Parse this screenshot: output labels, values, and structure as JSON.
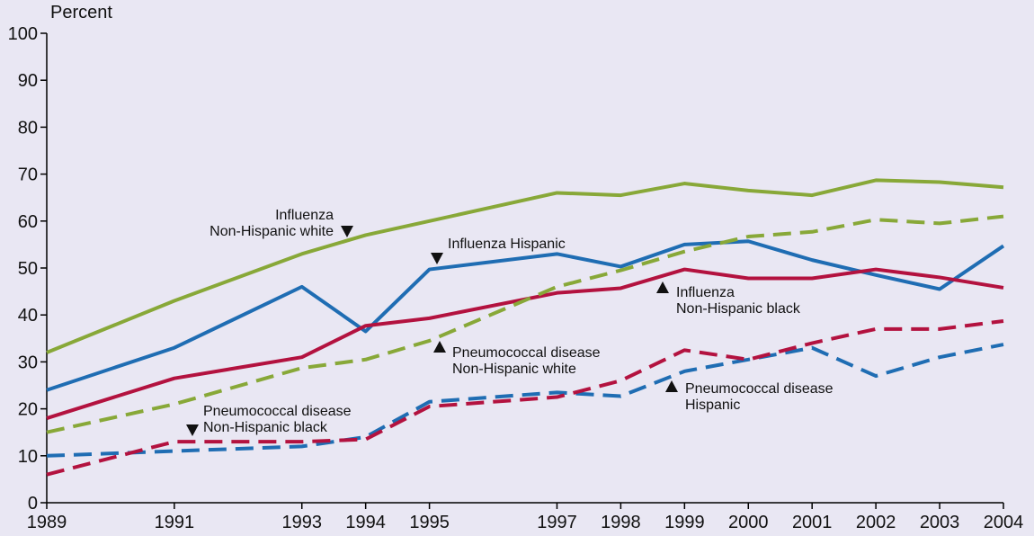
{
  "chart_data": {
    "type": "line",
    "y_label": "Percent",
    "x": [
      1989,
      1991,
      1993,
      1994,
      1995,
      1997,
      1998,
      1999,
      2000,
      2001,
      2002,
      2003,
      2004
    ],
    "xlim": [
      1989,
      2004
    ],
    "xticks": [
      1989,
      1991,
      1993,
      1994,
      1995,
      1997,
      1998,
      1999,
      2000,
      2001,
      2002,
      2003,
      2004
    ],
    "ylim": [
      0,
      100
    ],
    "yticks": [
      0,
      10,
      20,
      30,
      40,
      50,
      60,
      70,
      80,
      90,
      100
    ],
    "series": [
      {
        "label": [
          "Influenza",
          "Non-Hispanic white"
        ],
        "color": "#88a838",
        "dashed": false,
        "values": [
          32,
          43,
          53,
          57,
          60,
          66,
          65.5,
          68,
          66.5,
          65.5,
          68.7,
          68.3,
          67.2
        ]
      },
      {
        "label": [
          "Influenza Hispanic"
        ],
        "color": "#1f6db3",
        "dashed": false,
        "values": [
          24,
          33,
          46,
          36.5,
          49.7,
          53,
          50.3,
          55,
          55.7,
          51.7,
          48.5,
          45.5,
          54.7
        ]
      },
      {
        "label": [
          "Influenza",
          "Non-Hispanic black"
        ],
        "color": "#b3123f",
        "dashed": false,
        "values": [
          18,
          26.5,
          31,
          37.7,
          39.3,
          44.7,
          45.7,
          49.7,
          47.8,
          47.8,
          49.7,
          48,
          45.8
        ]
      },
      {
        "label": [
          "Pneumococcal disease",
          "Non-Hispanic white"
        ],
        "color": "#88a838",
        "dashed": true,
        "values": [
          15,
          21,
          28.7,
          30.5,
          34.5,
          46,
          49.5,
          53.5,
          56.7,
          57.7,
          60.3,
          59.5,
          61
        ]
      },
      {
        "label": [
          "Pneumococcal disease",
          "Hispanic"
        ],
        "color": "#1f6db3",
        "dashed": true,
        "values": [
          10,
          11,
          12,
          14,
          21.5,
          23.5,
          22.7,
          28,
          30.5,
          33,
          27,
          31,
          33.7
        ]
      },
      {
        "label": [
          "Pneumococcal disease",
          "Non-Hispanic black"
        ],
        "color": "#b3123f",
        "dashed": true,
        "values": [
          6,
          13,
          13,
          13.5,
          20.5,
          22.5,
          26,
          32.5,
          30.5,
          34,
          37,
          37,
          38.7
        ]
      }
    ]
  }
}
